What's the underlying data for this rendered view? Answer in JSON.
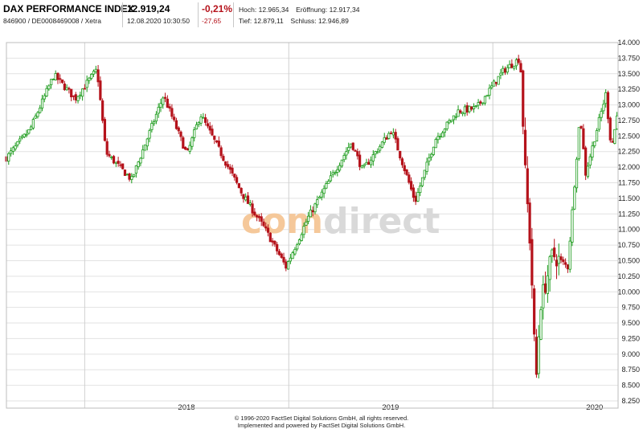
{
  "header": {
    "title": "DAX PERFORMANCE INDEX",
    "ids": "846900 / DE0008469008 / Xetra",
    "last_price": "12.919,24",
    "datetime": "12.08.2020 10:30:50",
    "change_pct": "-0,21%",
    "change_abs": "-27,65",
    "high_label": "Hoch:",
    "high_value": "12.965,34",
    "open_label": "Eröffnung:",
    "open_value": "12.917,34",
    "low_label": "Tief:",
    "low_value": "12.879,11",
    "close_label": "Schluss:",
    "close_value": "12.946,89"
  },
  "watermark": {
    "part1": "com",
    "part2": "direct"
  },
  "footer": {
    "line1": "© 1996-2020 FactSet Digital Solutions GmbH, all rights reserved.",
    "line2": "Implemented and powered by FactSet Digital Solutions GmbH."
  },
  "colors": {
    "up": "#1a9a1a",
    "down": "#b5121b",
    "grid": "#e2e2e2",
    "year_line": "#d0d0d0",
    "watermark_orange": "#f5c89a",
    "watermark_gray": "#d9d9d9"
  },
  "chart_data": {
    "type": "candlestick",
    "title": "",
    "xlabel": "",
    "ylabel": "",
    "ylim": [
      8250,
      14000
    ],
    "grid": true,
    "y_ticks": [
      "14.000",
      "13.750",
      "13.500",
      "13.250",
      "13.000",
      "12.750",
      "12.500",
      "12.250",
      "12.000",
      "11.750",
      "11.500",
      "11.250",
      "11.000",
      "10.750",
      "10.500",
      "10.250",
      "10.000",
      "9.750",
      "9.500",
      "9.250",
      "9.000",
      "8.750",
      "8.500",
      "8.250"
    ],
    "x_ticks": [
      {
        "label": "2018",
        "date": "2018-01-01"
      },
      {
        "label": "2019",
        "date": "2019-01-01"
      },
      {
        "label": "2020",
        "date": "2020-01-01"
      }
    ],
    "x_range": [
      "2017-08-14",
      "2020-08-12"
    ],
    "series": [
      {
        "anchors": [
          {
            "date": "2017-08-14",
            "close": 12150
          },
          {
            "date": "2017-09-25",
            "close": 12600
          },
          {
            "date": "2017-11-07",
            "close": 13480
          },
          {
            "date": "2017-12-15",
            "close": 13100
          },
          {
            "date": "2018-01-23",
            "close": 13570
          },
          {
            "date": "2018-02-08",
            "close": 12230
          },
          {
            "date": "2018-03-26",
            "close": 11800
          },
          {
            "date": "2018-05-22",
            "close": 13150
          },
          {
            "date": "2018-07-03",
            "close": 12200
          },
          {
            "date": "2018-07-27",
            "close": 12850
          },
          {
            "date": "2018-10-11",
            "close": 11550
          },
          {
            "date": "2018-11-20",
            "close": 11000
          },
          {
            "date": "2018-12-27",
            "close": 10400
          },
          {
            "date": "2019-02-05",
            "close": 11200
          },
          {
            "date": "2019-04-23",
            "close": 12400
          },
          {
            "date": "2019-05-13",
            "close": 11950
          },
          {
            "date": "2019-07-04",
            "close": 12600
          },
          {
            "date": "2019-08-15",
            "close": 11450
          },
          {
            "date": "2019-09-20",
            "close": 12450
          },
          {
            "date": "2019-10-31",
            "close": 12900
          },
          {
            "date": "2019-12-03",
            "close": 12950
          },
          {
            "date": "2020-01-20",
            "close": 13550
          },
          {
            "date": "2020-02-19",
            "close": 13750
          },
          {
            "date": "2020-02-28",
            "close": 11900
          },
          {
            "date": "2020-03-09",
            "close": 10600
          },
          {
            "date": "2020-03-18",
            "close": 8500
          },
          {
            "date": "2020-03-26",
            "close": 9800
          },
          {
            "date": "2020-04-17",
            "close": 10600
          },
          {
            "date": "2020-05-14",
            "close": 10400
          },
          {
            "date": "2020-06-05",
            "close": 12850
          },
          {
            "date": "2020-06-15",
            "close": 11900
          },
          {
            "date": "2020-07-21",
            "close": 13170
          },
          {
            "date": "2020-07-31",
            "close": 12300
          },
          {
            "date": "2020-08-12",
            "close": 12919
          }
        ]
      }
    ]
  }
}
